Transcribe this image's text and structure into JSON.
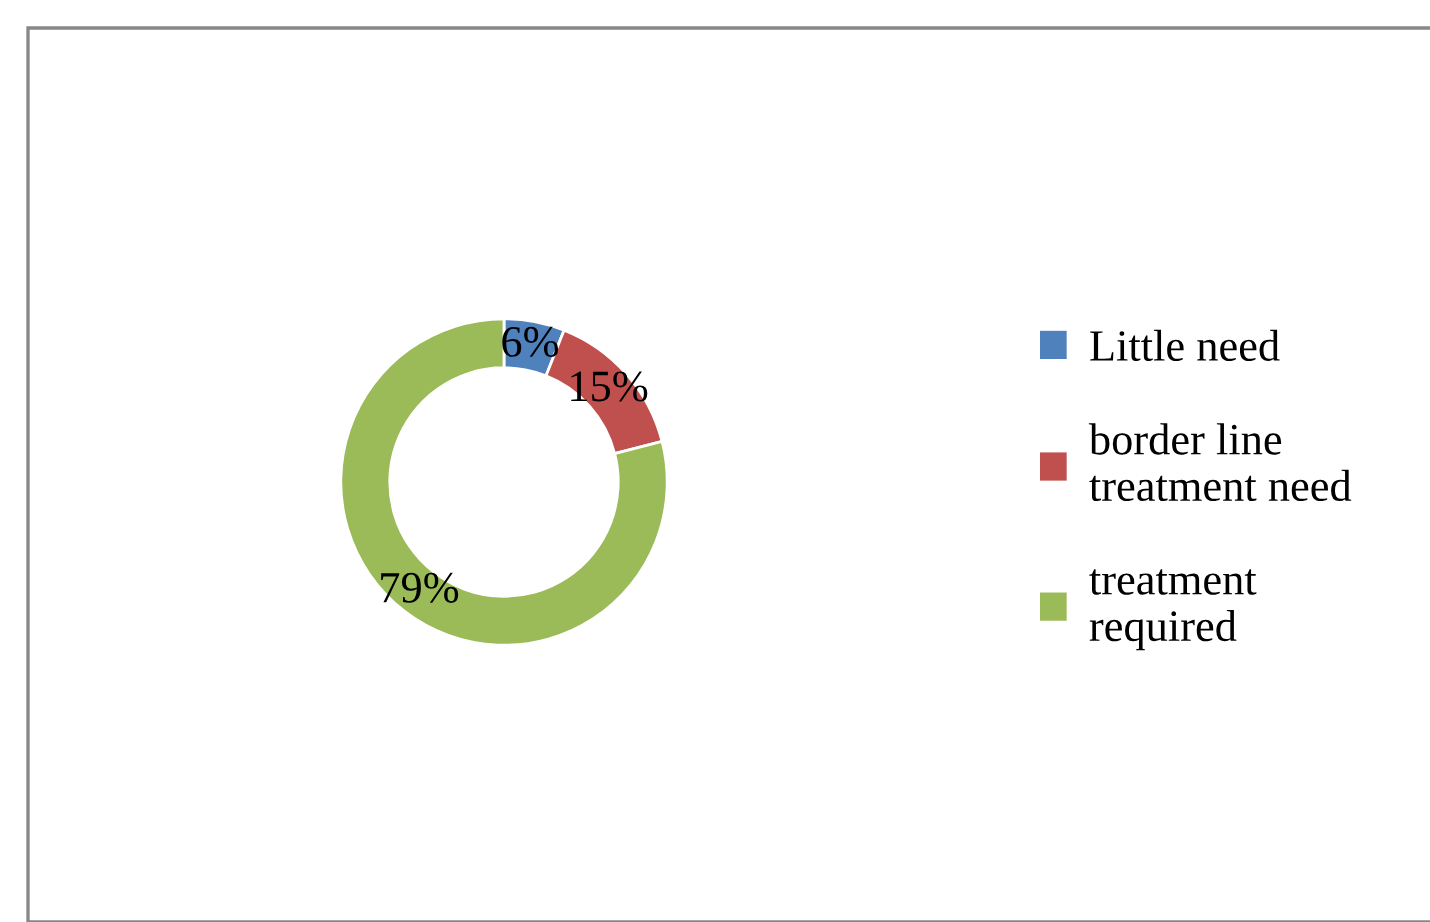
{
  "chart_data": {
    "type": "donut",
    "categories": [
      "Little need",
      "border line\ntreatment need",
      "treatment\nrequired"
    ],
    "values": [
      6,
      15,
      79
    ],
    "colors": [
      "#4f81bd",
      "#c0504d",
      "#9bbb59"
    ],
    "value_labels": [
      "6%",
      "15%",
      "79%"
    ],
    "legend": "right"
  }
}
